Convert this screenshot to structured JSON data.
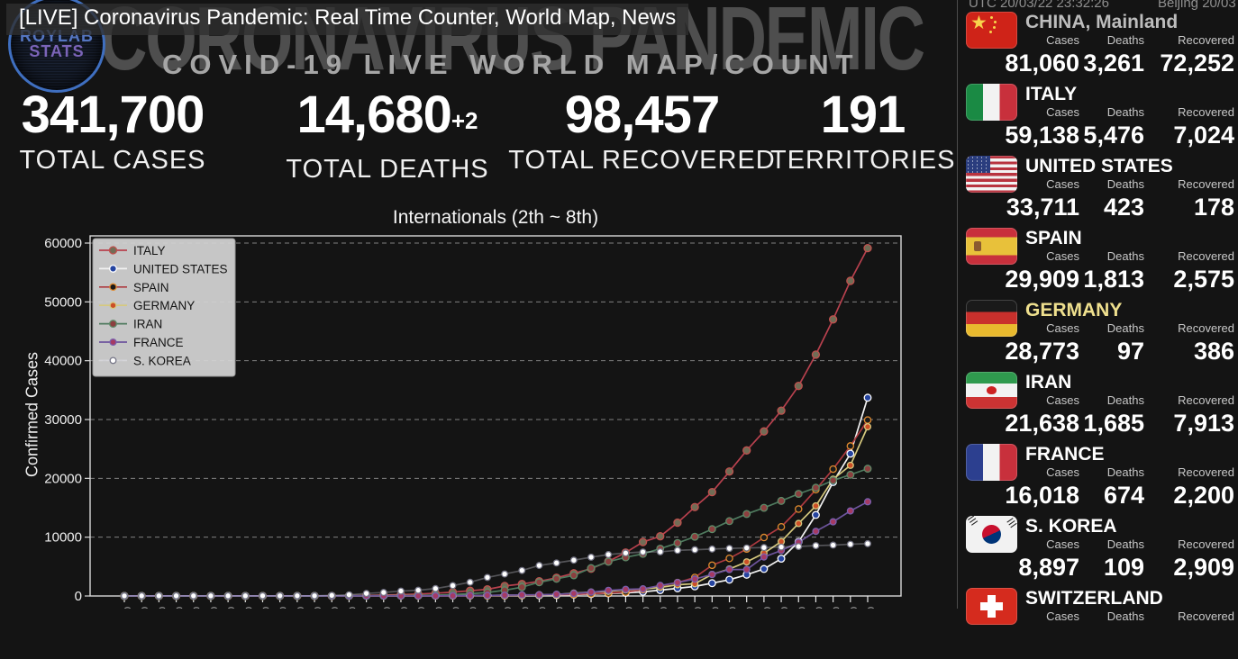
{
  "header": {
    "live_title": "[LIVE] Coronavirus Pandemic: Real Time Counter, World Map, News",
    "ghost_title": "CORONAVIRUS PANDEMIC",
    "subtitle": "COVID-19 LIVE WORLD MAP/COUNT",
    "logo_line1": "ROYLAB",
    "logo_line2": "STATS"
  },
  "clock": {
    "utc": "UTC 20/03/22 23:32:26",
    "beijing": "Beijing 20/03"
  },
  "stats": [
    {
      "value": "341,700",
      "delta": "",
      "label": "TOTAL CASES"
    },
    {
      "value": "14,680",
      "delta": "+2",
      "label": "TOTAL DEATHS"
    },
    {
      "value": "98,457",
      "delta": "",
      "label": "TOTAL RECOVERED"
    },
    {
      "value": "191",
      "delta": "",
      "label": "TERRITORIES"
    }
  ],
  "chart_data": {
    "type": "line",
    "title": "Internationals (2th ~ 8th)",
    "ylabel": "Confirmed Cases",
    "ylim": [
      0,
      61200
    ],
    "yticks": [
      0,
      10000,
      20000,
      30000,
      40000,
      50000,
      60000
    ],
    "grid": "horizontal-dashed",
    "legend_position": "upper-left",
    "x": [
      "02/08",
      "02/09",
      "02/10",
      "02/11",
      "02/12",
      "02/13",
      "02/14",
      "02/15",
      "02/16",
      "02/17",
      "02/18",
      "02/19",
      "02/20",
      "02/21",
      "02/22",
      "02/23",
      "02/24",
      "02/25",
      "02/26",
      "02/27",
      "02/28",
      "02/29",
      "03/01",
      "03/02",
      "03/03",
      "03/04",
      "03/05",
      "03/06",
      "03/07",
      "03/08",
      "03/09",
      "03/10",
      "03/11",
      "03/12",
      "03/13",
      "03/14",
      "03/15",
      "03/16",
      "03/17",
      "03/18",
      "03/19",
      "03/20",
      "03/21",
      "03/22"
    ],
    "series": [
      {
        "name": "ITALY",
        "color": "#b8414e",
        "marker_fill": "#716d56",
        "marker_stroke": "#c0504d",
        "marker_r": 4,
        "values": [
          3,
          3,
          3,
          3,
          3,
          3,
          3,
          3,
          3,
          3,
          3,
          3,
          3,
          21,
          79,
          157,
          229,
          323,
          470,
          655,
          889,
          1128,
          1701,
          2036,
          2502,
          3089,
          3858,
          4636,
          5883,
          7375,
          9172,
          10149,
          12462,
          15113,
          17660,
          21157,
          24747,
          27980,
          31506,
          35713,
          41035,
          47021,
          53578,
          59138
        ]
      },
      {
        "name": "UNITED STATES",
        "color": "#f2f2f2",
        "marker_fill": "#2544a0",
        "marker_stroke": "#ffffff",
        "marker_r": 3.8,
        "values": [
          12,
          12,
          13,
          13,
          13,
          14,
          14,
          15,
          15,
          15,
          15,
          15,
          15,
          35,
          35,
          35,
          53,
          53,
          57,
          58,
          60,
          68,
          75,
          100,
          124,
          158,
          221,
          319,
          435,
          541,
          704,
          994,
          1301,
          1630,
          2183,
          2771,
          3613,
          4596,
          6344,
          9197,
          13779,
          19367,
          24192,
          33711
        ]
      },
      {
        "name": "SPAIN",
        "color": "#ad3a40",
        "marker_fill": "#1a1a1a",
        "marker_stroke": "#e08a2e",
        "marker_r": 3.6,
        "values": [
          1,
          1,
          2,
          2,
          2,
          2,
          2,
          2,
          2,
          2,
          2,
          2,
          2,
          2,
          2,
          2,
          2,
          9,
          13,
          15,
          32,
          45,
          84,
          120,
          165,
          222,
          259,
          400,
          500,
          673,
          1073,
          1695,
          2277,
          3146,
          5232,
          6391,
          7988,
          9942,
          11748,
          14769,
          18077,
          21571,
          25496,
          29909
        ]
      },
      {
        "name": "GERMANY",
        "color": "#d6c97e",
        "marker_fill": "#cc4f26",
        "marker_stroke": "#d6c97e",
        "marker_r": 3.4,
        "values": [
          14,
          14,
          14,
          16,
          16,
          16,
          16,
          16,
          16,
          16,
          16,
          16,
          16,
          16,
          16,
          16,
          16,
          17,
          27,
          46,
          48,
          79,
          130,
          159,
          196,
          262,
          482,
          670,
          799,
          1040,
          1176,
          1457,
          1908,
          2078,
          3675,
          4585,
          5795,
          7272,
          9257,
          12327,
          15320,
          19848,
          22213,
          28773
        ]
      },
      {
        "name": "IRAN",
        "color": "#4f7b5f",
        "marker_fill": "#8c3f3f",
        "marker_stroke": "#5d8a68",
        "marker_r": 3.8,
        "values": [
          0,
          0,
          0,
          0,
          0,
          0,
          0,
          0,
          0,
          0,
          0,
          2,
          5,
          18,
          28,
          43,
          61,
          95,
          139,
          245,
          388,
          593,
          978,
          1501,
          2336,
          2922,
          3513,
          4747,
          5823,
          6566,
          7161,
          8042,
          9000,
          10075,
          11364,
          12729,
          13938,
          14991,
          16169,
          17361,
          18407,
          19644,
          20610,
          21638
        ]
      },
      {
        "name": "FRANCE",
        "color": "#6d549c",
        "marker_fill": "#a63a63",
        "marker_stroke": "#7a5fae",
        "marker_r": 3.4,
        "values": [
          11,
          11,
          11,
          11,
          11,
          11,
          11,
          12,
          12,
          12,
          12,
          12,
          12,
          12,
          12,
          12,
          12,
          12,
          18,
          38,
          57,
          100,
          130,
          191,
          204,
          288,
          423,
          653,
          949,
          1126,
          1209,
          1784,
          2281,
          2876,
          3661,
          4499,
          4499,
          6633,
          7730,
          9134,
          10995,
          12612,
          14459,
          16018
        ]
      },
      {
        "name": "S. KOREA",
        "color": "rgba(235,235,248,0.3)",
        "marker_fill": "#ffffff",
        "marker_stroke": "#777788",
        "marker_r": 3.3,
        "values": [
          24,
          25,
          27,
          28,
          28,
          28,
          28,
          28,
          29,
          30,
          31,
          31,
          104,
          204,
          433,
          602,
          833,
          977,
          1261,
          1766,
          2337,
          3150,
          3736,
          4335,
          5186,
          5621,
          6088,
          6593,
          7041,
          7314,
          7478,
          7513,
          7755,
          7869,
          7979,
          8086,
          8162,
          8236,
          8320,
          8413,
          8565,
          8652,
          8799,
          8897
        ]
      }
    ]
  },
  "sidebar": {
    "col_labels": [
      "Cases",
      "Deaths",
      "Recovered"
    ],
    "countries": [
      {
        "name": "CHINA, Mainland",
        "name_color": "#bdbdbd",
        "flag": "cn",
        "cases": "81,060",
        "deaths": "3,261",
        "recovered": "72,252"
      },
      {
        "name": "ITALY",
        "name_color": "#ffffff",
        "flag": "it",
        "cases": "59,138",
        "deaths": "5,476",
        "recovered": "7,024"
      },
      {
        "name": "UNITED STATES",
        "name_color": "#ffffff",
        "flag": "us",
        "cases": "33,711",
        "deaths": "423",
        "recovered": "178"
      },
      {
        "name": "SPAIN",
        "name_color": "#ffffff",
        "flag": "es",
        "cases": "29,909",
        "deaths": "1,813",
        "recovered": "2,575"
      },
      {
        "name": "GERMANY",
        "name_color": "#efe08e",
        "flag": "de",
        "cases": "28,773",
        "deaths": "97",
        "recovered": "386"
      },
      {
        "name": "IRAN",
        "name_color": "#ffffff",
        "flag": "ir",
        "cases": "21,638",
        "deaths": "1,685",
        "recovered": "7,913"
      },
      {
        "name": "FRANCE",
        "name_color": "#ffffff",
        "flag": "fr",
        "cases": "16,018",
        "deaths": "674",
        "recovered": "2,200"
      },
      {
        "name": "S. KOREA",
        "name_color": "#ffffff",
        "flag": "kr",
        "cases": "8,897",
        "deaths": "109",
        "recovered": "2,909"
      },
      {
        "name": "SWITZERLAND",
        "name_color": "#ffffff",
        "flag": "ch",
        "cases": "",
        "deaths": "",
        "recovered": ""
      }
    ]
  },
  "colors": {
    "background": "#141414",
    "ghost_text": "#4e4e4e",
    "accent_highlight": "#efe08e",
    "grid_line": "#808080",
    "axis_line": "#d9d9d9",
    "legend_bg": "#d4d4d4"
  }
}
